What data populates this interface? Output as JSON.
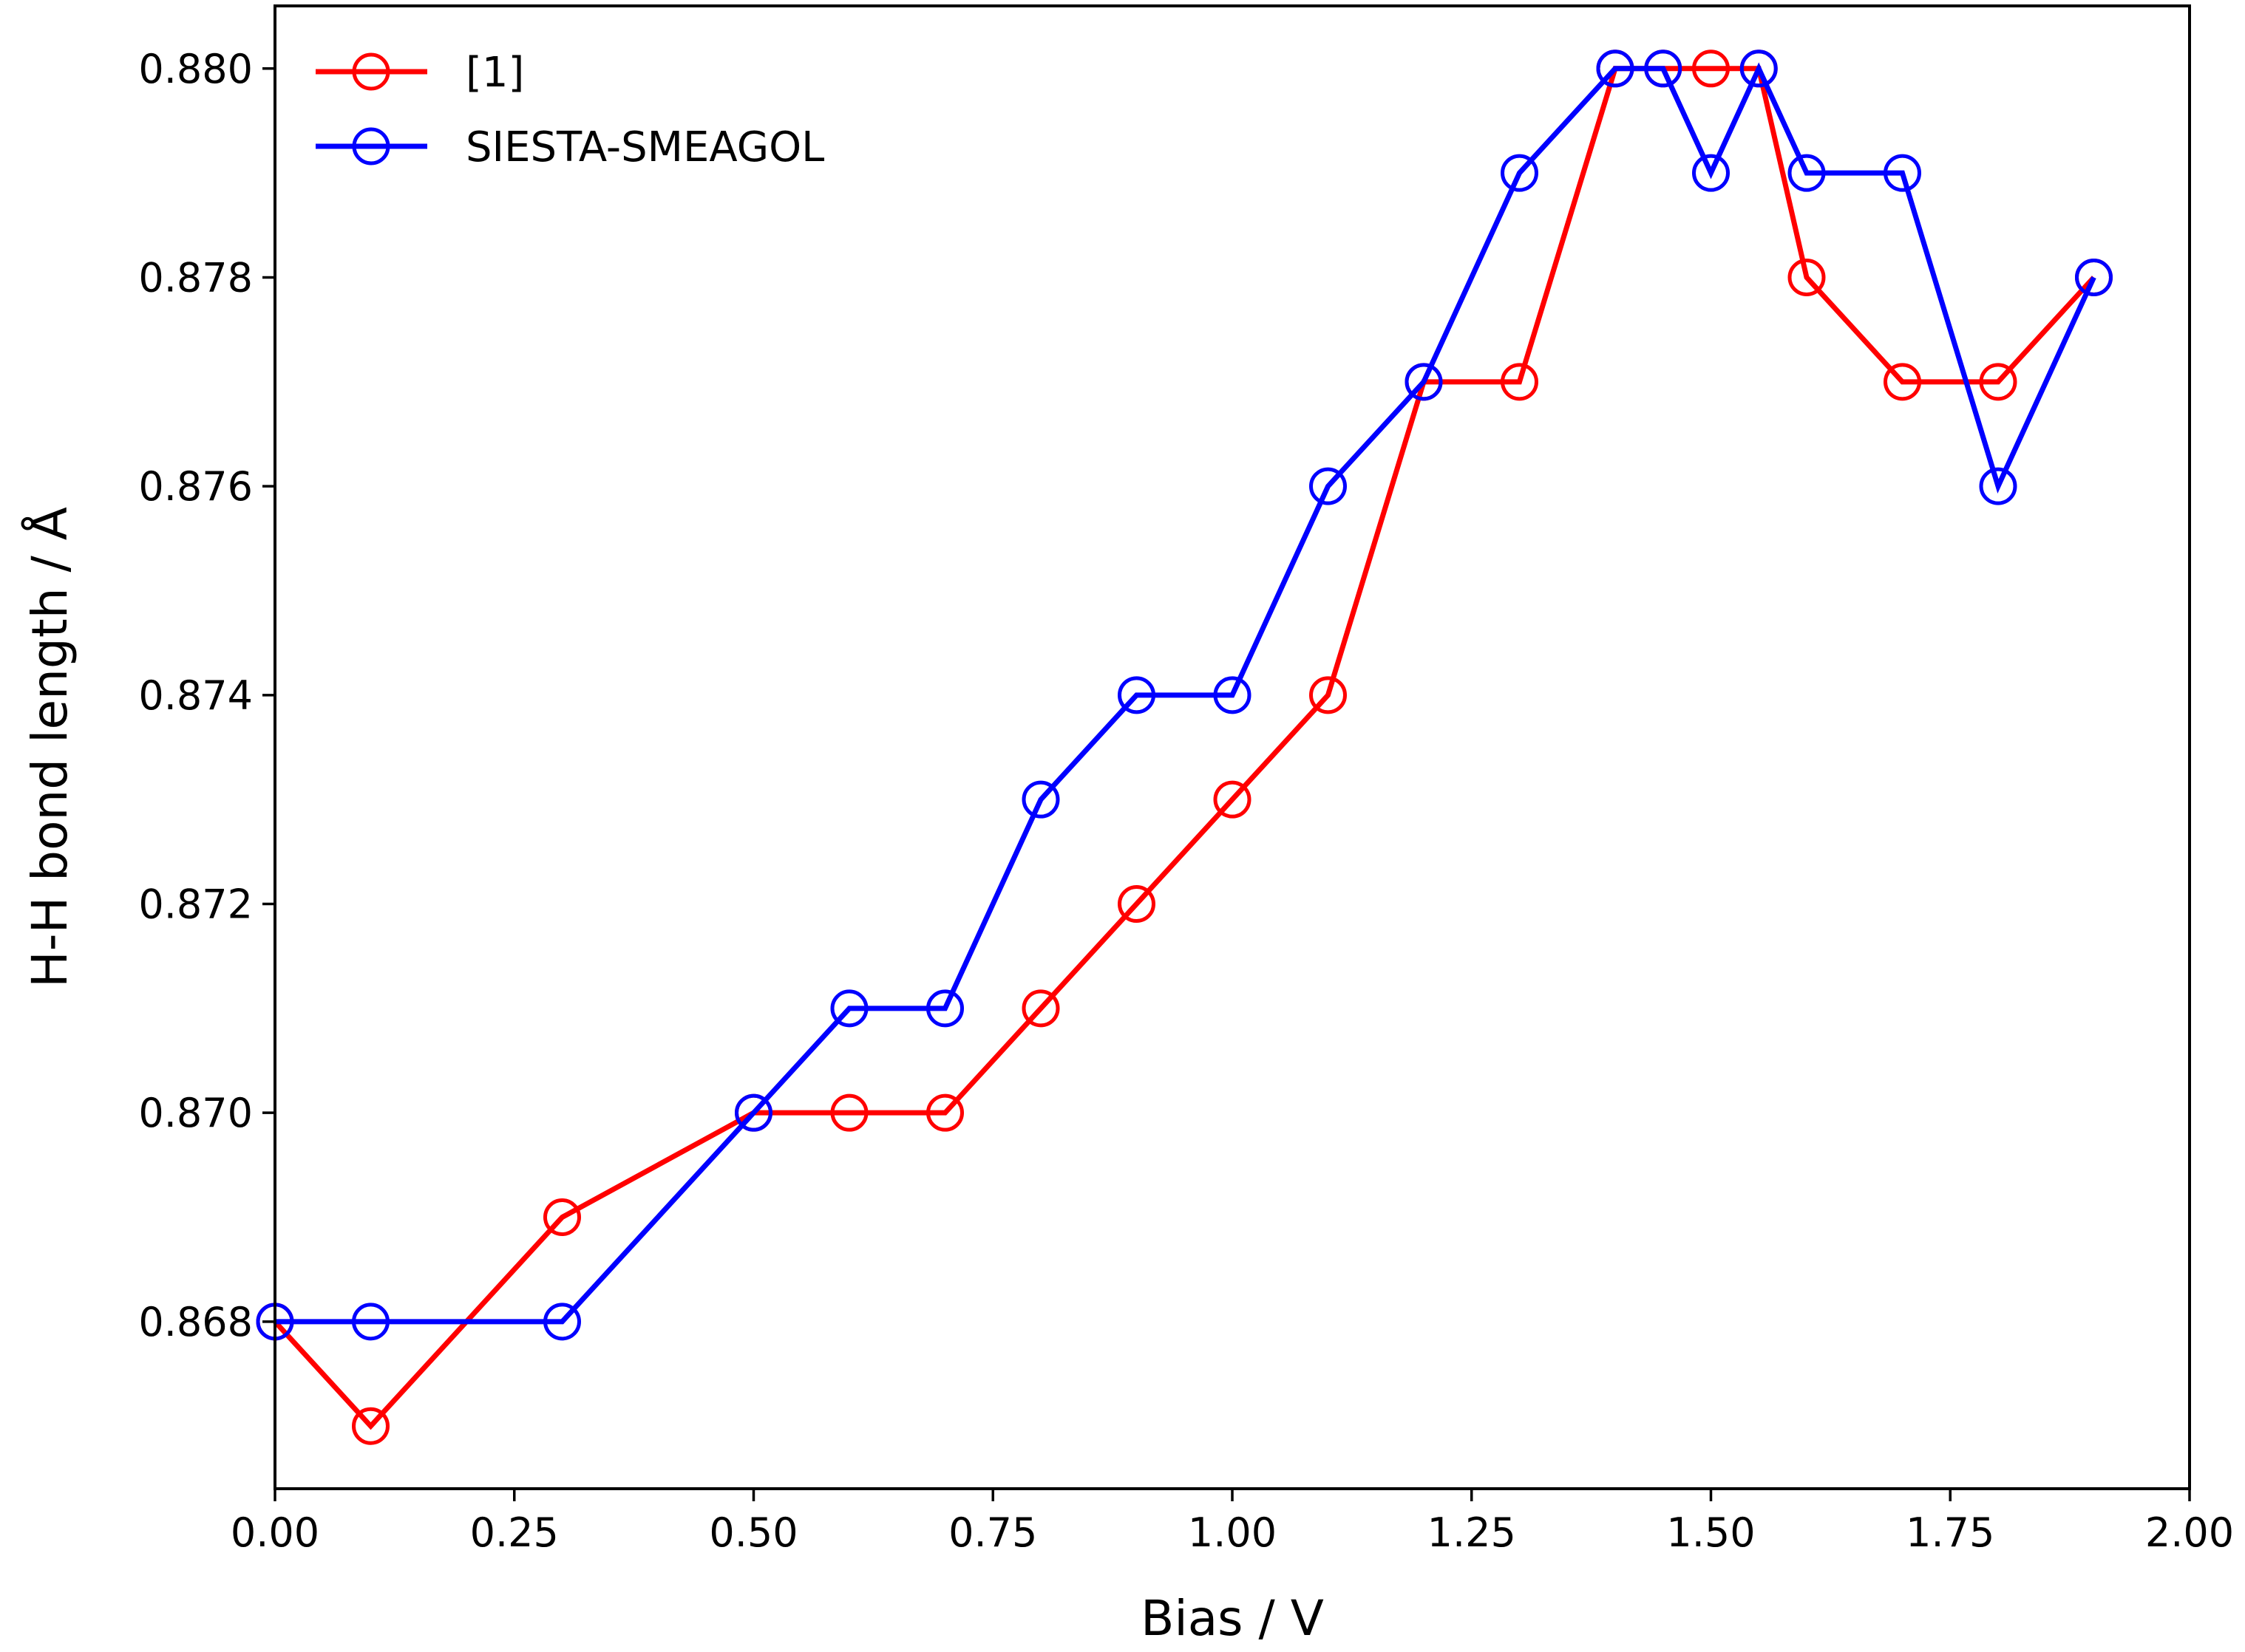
{
  "chart_data": {
    "type": "line",
    "title": "",
    "xlabel": "Bias / V",
    "ylabel": "H-H bond length / Å",
    "xlim": [
      0.0,
      2.0
    ],
    "ylim": [
      0.8664,
      0.8806
    ],
    "xticks": [
      0.0,
      0.25,
      0.5,
      0.75,
      1.0,
      1.25,
      1.5,
      1.75,
      2.0
    ],
    "xtick_labels": [
      "0.00",
      "0.25",
      "0.50",
      "0.75",
      "1.00",
      "1.25",
      "1.50",
      "1.75",
      "2.00"
    ],
    "yticks": [
      0.868,
      0.87,
      0.872,
      0.874,
      0.876,
      0.878,
      0.88
    ],
    "ytick_labels": [
      "0.868",
      "0.870",
      "0.872",
      "0.874",
      "0.876",
      "0.878",
      "0.880"
    ],
    "grid": false,
    "legend_position": "top-left",
    "marker": "open-circle",
    "series": [
      {
        "name": "[1]",
        "color": "#ff0000",
        "x": [
          0.0,
          0.1,
          0.3,
          0.5,
          0.6,
          0.7,
          0.8,
          0.9,
          1.0,
          1.1,
          1.2,
          1.3,
          1.4,
          1.45,
          1.5,
          1.55,
          1.6,
          1.7,
          1.8,
          1.9
        ],
        "y": [
          0.868,
          0.867,
          0.869,
          0.87,
          0.87,
          0.87,
          0.871,
          0.872,
          0.873,
          0.874,
          0.877,
          0.877,
          0.88,
          0.88,
          0.88,
          0.88,
          0.878,
          0.877,
          0.877,
          0.878
        ]
      },
      {
        "name": "SIESTA-SMEAGOL",
        "color": "#0000ff",
        "x": [
          0.0,
          0.1,
          0.3,
          0.5,
          0.6,
          0.7,
          0.8,
          0.9,
          1.0,
          1.1,
          1.2,
          1.3,
          1.4,
          1.45,
          1.5,
          1.55,
          1.6,
          1.7,
          1.8,
          1.9
        ],
        "y": [
          0.868,
          0.868,
          0.868,
          0.87,
          0.871,
          0.871,
          0.873,
          0.874,
          0.874,
          0.876,
          0.877,
          0.879,
          0.88,
          0.88,
          0.879,
          0.88,
          0.879,
          0.879,
          0.876,
          0.878
        ]
      }
    ]
  }
}
